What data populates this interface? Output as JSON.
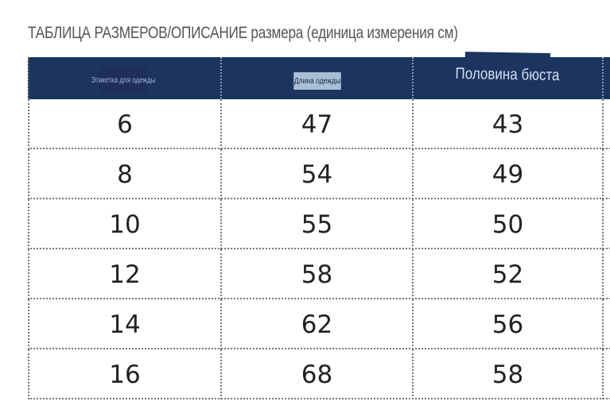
{
  "title": "ТАБЛИЦА РАЗМЕРОВ/ОПИСАНИЕ размера (единица измерения см)",
  "colors": {
    "header_bg": "#1c3560"
  },
  "table": {
    "headers": [
      "Этикетка для одежды",
      "Длина одежды",
      "Половина бюста"
    ],
    "rows": [
      [
        "6",
        "47",
        "43"
      ],
      [
        "8",
        "54",
        "49"
      ],
      [
        "10",
        "55",
        "50"
      ],
      [
        "12",
        "58",
        "52"
      ],
      [
        "14",
        "62",
        "56"
      ],
      [
        "16",
        "68",
        "58"
      ]
    ]
  }
}
